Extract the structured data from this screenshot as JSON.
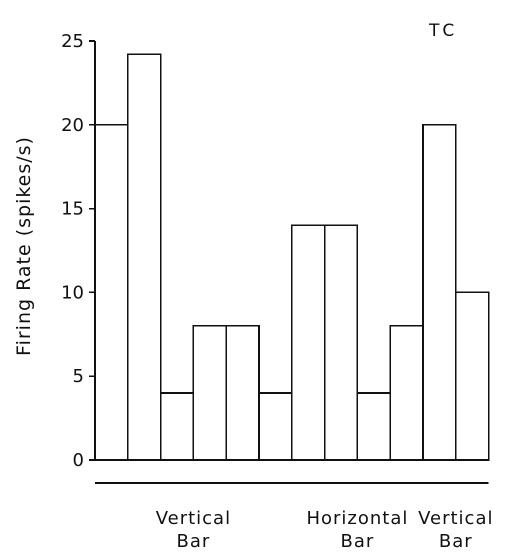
{
  "chart_data": {
    "type": "bar",
    "panel_label": "TC",
    "ylabel": "Firing Rate (spikes/s)",
    "ylim": [
      0,
      25
    ],
    "yticks": [
      0,
      5,
      10,
      15,
      20,
      25
    ],
    "values": [
      20,
      24.2,
      4,
      8,
      8,
      4,
      14,
      14,
      4,
      8,
      20,
      10
    ],
    "groups": [
      {
        "label_lines": [
          "Vertical",
          "Bar"
        ],
        "bar_indices": [
          0,
          5
        ]
      },
      {
        "label_lines": [
          "Horizontal",
          "Bar"
        ],
        "bar_indices": [
          6,
          9
        ]
      },
      {
        "label_lines": [
          "Vertical",
          "Bar"
        ],
        "bar_indices": [
          10,
          11
        ]
      }
    ],
    "grid": false
  },
  "colors": {
    "ink": "#111111",
    "bar_fill": "#ffffff",
    "background": "#ffffff"
  }
}
